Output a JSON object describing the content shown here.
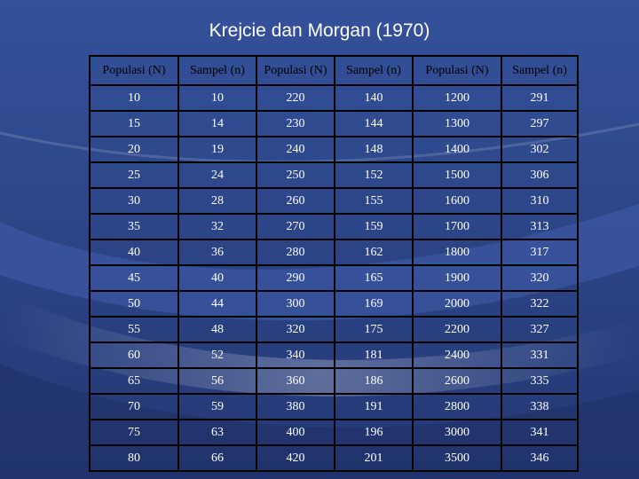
{
  "title": "Krejcie dan Morgan (1970)",
  "table": {
    "headers": [
      "Populasi (N)",
      "Sampel (n)",
      "Populasi (N)",
      "Sampel (n)",
      "Populasi (N)",
      "Sampel (n)"
    ],
    "rows": [
      [
        "10",
        "10",
        "220",
        "140",
        "1200",
        "291"
      ],
      [
        "15",
        "14",
        "230",
        "144",
        "1300",
        "297"
      ],
      [
        "20",
        "19",
        "240",
        "148",
        "1400",
        "302"
      ],
      [
        "25",
        "24",
        "250",
        "152",
        "1500",
        "306"
      ],
      [
        "30",
        "28",
        "260",
        "155",
        "1600",
        "310"
      ],
      [
        "35",
        "32",
        "270",
        "159",
        "1700",
        "313"
      ],
      [
        "40",
        "36",
        "280",
        "162",
        "1800",
        "317"
      ],
      [
        "45",
        "40",
        "290",
        "165",
        "1900",
        "320"
      ],
      [
        "50",
        "44",
        "300",
        "169",
        "2000",
        "322"
      ],
      [
        "55",
        "48",
        "320",
        "175",
        "2200",
        "327"
      ],
      [
        "60",
        "52",
        "340",
        "181",
        "2400",
        "331"
      ],
      [
        "65",
        "56",
        "360",
        "186",
        "2600",
        "335"
      ],
      [
        "70",
        "59",
        "380",
        "191",
        "2800",
        "338"
      ],
      [
        "75",
        "63",
        "400",
        "196",
        "3000",
        "341"
      ],
      [
        "80",
        "66",
        "420",
        "201",
        "3500",
        "346"
      ]
    ]
  }
}
